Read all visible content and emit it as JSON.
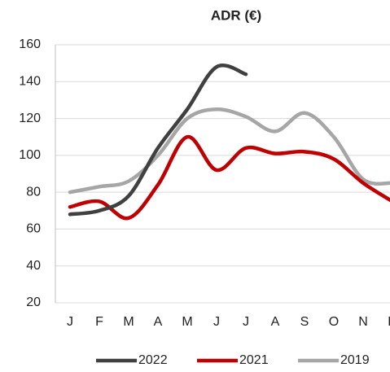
{
  "chart_data": {
    "type": "line",
    "title": "ADR (€)",
    "categories": [
      "J",
      "F",
      "M",
      "A",
      "M",
      "J",
      "J",
      "A",
      "S",
      "O",
      "N",
      "D"
    ],
    "series": [
      {
        "name": "2022",
        "color": "#404040",
        "values": [
          68,
          70,
          78,
          104,
          125,
          148,
          144,
          null,
          null,
          null,
          null,
          null
        ]
      },
      {
        "name": "2021",
        "color": "#c00000",
        "values": [
          72,
          75,
          66,
          84,
          110,
          92,
          104,
          101,
          102,
          98,
          85,
          75
        ]
      },
      {
        "name": "2019",
        "color": "#a6a6a6",
        "values": [
          80,
          83,
          86,
          100,
          120,
          125,
          121,
          113,
          123,
          110,
          87,
          85
        ]
      }
    ],
    "ylim": [
      20,
      160
    ],
    "yticks": [
      20,
      40,
      60,
      80,
      100,
      120,
      140,
      160
    ],
    "grid": true,
    "legend": "bottom"
  }
}
